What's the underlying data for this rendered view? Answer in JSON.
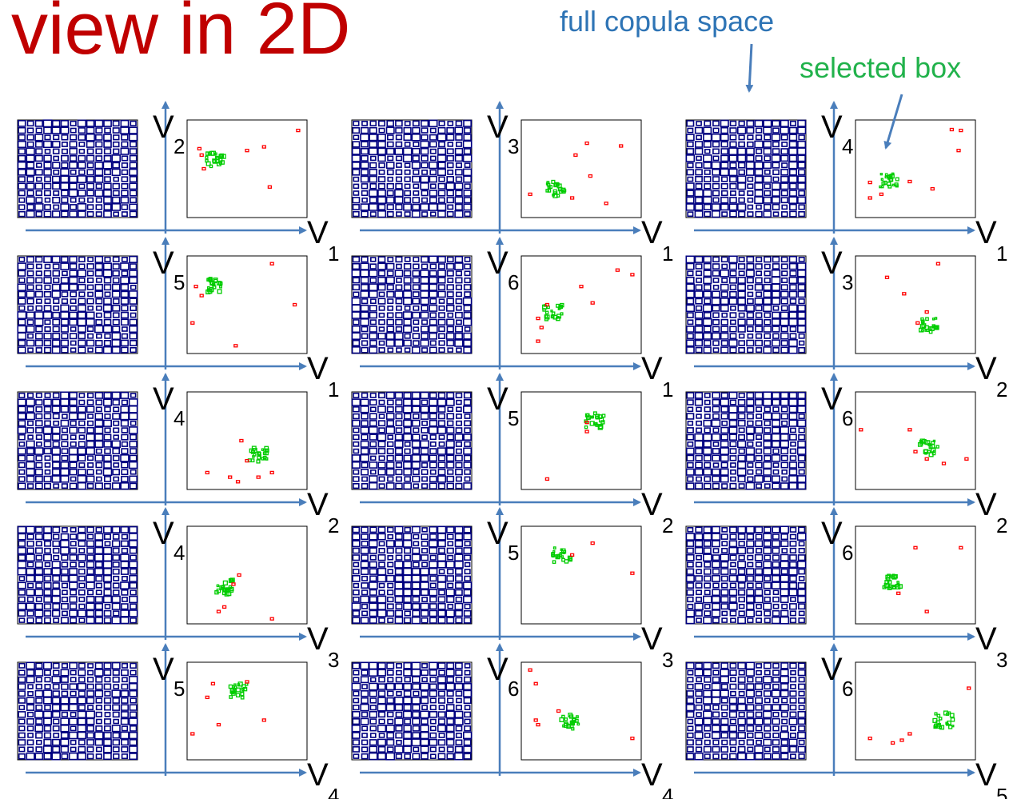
{
  "title": "view in 2D",
  "annotations": {
    "full_space": "full copula space",
    "selected_box": "selected box"
  },
  "colors": {
    "title": "#c00000",
    "full_space_note": "#2e74b5",
    "selected_note": "#21b24b",
    "axis": "#4a7ebb",
    "full_space_boxes": "#000080",
    "selected_cluster": "#00cc00",
    "outliers": "#ff0000"
  },
  "panels": [
    {
      "x_var": "V",
      "x_sub": "1",
      "y_var": "V",
      "y_sub": "2",
      "cluster": [
        0.22,
        0.6
      ],
      "outliers": [
        [
          0.95,
          0.92
        ],
        [
          0.65,
          0.74
        ],
        [
          0.5,
          0.7
        ],
        [
          0.7,
          0.3
        ],
        [
          0.1,
          0.65
        ],
        [
          0.12,
          0.5
        ],
        [
          0.08,
          0.72
        ]
      ]
    },
    {
      "x_var": "V",
      "x_sub": "1",
      "y_var": "V",
      "y_sub": "3",
      "cluster": [
        0.28,
        0.28
      ],
      "outliers": [
        [
          0.55,
          0.78
        ],
        [
          0.45,
          0.65
        ],
        [
          0.85,
          0.75
        ],
        [
          0.58,
          0.42
        ],
        [
          0.72,
          0.12
        ],
        [
          0.42,
          0.18
        ],
        [
          0.05,
          0.22
        ]
      ]
    },
    {
      "x_var": "V",
      "x_sub": "1",
      "y_var": "V",
      "y_sub": "4",
      "cluster": [
        0.27,
        0.38
      ],
      "outliers": [
        [
          0.9,
          0.92
        ],
        [
          0.82,
          0.93
        ],
        [
          0.88,
          0.7
        ],
        [
          0.65,
          0.28
        ],
        [
          0.1,
          0.18
        ],
        [
          0.2,
          0.22
        ],
        [
          0.45,
          0.36
        ],
        [
          0.1,
          0.35
        ]
      ]
    },
    {
      "x_var": "V",
      "x_sub": "1",
      "y_var": "V",
      "y_sub": "5",
      "cluster": [
        0.2,
        0.72
      ],
      "outliers": [
        [
          0.72,
          0.95
        ],
        [
          0.92,
          0.5
        ],
        [
          0.05,
          0.7
        ],
        [
          0.4,
          0.05
        ],
        [
          0.02,
          0.3
        ],
        [
          0.1,
          0.6
        ]
      ]
    },
    {
      "x_var": "V",
      "x_sub": "1",
      "y_var": "V",
      "y_sub": "6",
      "cluster": [
        0.25,
        0.42
      ],
      "outliers": [
        [
          0.82,
          0.88
        ],
        [
          0.95,
          0.83
        ],
        [
          0.5,
          0.7
        ],
        [
          0.6,
          0.52
        ],
        [
          0.12,
          0.35
        ],
        [
          0.15,
          0.25
        ],
        [
          0.12,
          0.1
        ],
        [
          0.2,
          0.5
        ]
      ]
    },
    {
      "x_var": "V",
      "x_sub": "2",
      "y_var": "V",
      "y_sub": "3",
      "cluster": [
        0.62,
        0.28
      ],
      "outliers": [
        [
          0.7,
          0.95
        ],
        [
          0.25,
          0.8
        ],
        [
          0.4,
          0.62
        ],
        [
          0.6,
          0.42
        ],
        [
          0.52,
          0.3
        ]
      ]
    },
    {
      "x_var": "V",
      "x_sub": "2",
      "y_var": "V",
      "y_sub": "4",
      "cluster": [
        0.6,
        0.35
      ],
      "outliers": [
        [
          0.45,
          0.5
        ],
        [
          0.15,
          0.15
        ],
        [
          0.35,
          0.1
        ],
        [
          0.42,
          0.05
        ],
        [
          0.6,
          0.1
        ],
        [
          0.72,
          0.15
        ],
        [
          0.5,
          0.28
        ]
      ]
    },
    {
      "x_var": "V",
      "x_sub": "2",
      "y_var": "V",
      "y_sub": "5",
      "cluster": [
        0.62,
        0.72
      ],
      "outliers": [
        [
          0.55,
          0.6
        ],
        [
          0.2,
          0.08
        ],
        [
          0.55,
          0.7
        ]
      ]
    },
    {
      "x_var": "V",
      "x_sub": "2",
      "y_var": "V",
      "y_sub": "6",
      "cluster": [
        0.62,
        0.42
      ],
      "outliers": [
        [
          0.02,
          0.62
        ],
        [
          0.45,
          0.62
        ],
        [
          0.75,
          0.25
        ],
        [
          0.95,
          0.3
        ],
        [
          0.6,
          0.3
        ],
        [
          0.5,
          0.38
        ]
      ]
    },
    {
      "x_var": "V",
      "x_sub": "3",
      "y_var": "V",
      "y_sub": "4",
      "cluster": [
        0.3,
        0.37
      ],
      "outliers": [
        [
          0.43,
          0.5
        ],
        [
          0.3,
          0.15
        ],
        [
          0.25,
          0.1
        ],
        [
          0.72,
          0.02
        ],
        [
          0.38,
          0.4
        ]
      ]
    },
    {
      "x_var": "V",
      "x_sub": "3",
      "y_var": "V",
      "y_sub": "5",
      "cluster": [
        0.33,
        0.72
      ],
      "outliers": [
        [
          0.6,
          0.85
        ],
        [
          0.95,
          0.52
        ],
        [
          0.42,
          0.72
        ]
      ]
    },
    {
      "x_var": "V",
      "x_sub": "3",
      "y_var": "V",
      "y_sub": "6",
      "cluster": [
        0.3,
        0.42
      ],
      "outliers": [
        [
          0.5,
          0.8
        ],
        [
          0.9,
          0.8
        ],
        [
          0.6,
          0.1
        ],
        [
          0.35,
          0.3
        ]
      ]
    },
    {
      "x_var": "V",
      "x_sub": "4",
      "y_var": "V",
      "y_sub": "5",
      "cluster": [
        0.43,
        0.72
      ],
      "outliers": [
        [
          0.2,
          0.8
        ],
        [
          0.15,
          0.65
        ],
        [
          0.25,
          0.35
        ],
        [
          0.65,
          0.4
        ],
        [
          0.02,
          0.25
        ],
        [
          0.5,
          0.82
        ]
      ]
    },
    {
      "x_var": "V",
      "x_sub": "4",
      "y_var": "V",
      "y_sub": "6",
      "cluster": [
        0.4,
        0.38
      ],
      "outliers": [
        [
          0.05,
          0.95
        ],
        [
          0.1,
          0.8
        ],
        [
          0.1,
          0.4
        ],
        [
          0.12,
          0.35
        ],
        [
          0.3,
          0.5
        ],
        [
          0.95,
          0.2
        ]
      ]
    },
    {
      "x_var": "V",
      "x_sub": "5",
      "y_var": "V",
      "y_sub": "6",
      "cluster": [
        0.75,
        0.4
      ],
      "outliers": [
        [
          0.97,
          0.75
        ],
        [
          0.1,
          0.2
        ],
        [
          0.3,
          0.15
        ],
        [
          0.38,
          0.18
        ],
        [
          0.45,
          0.25
        ]
      ]
    }
  ]
}
